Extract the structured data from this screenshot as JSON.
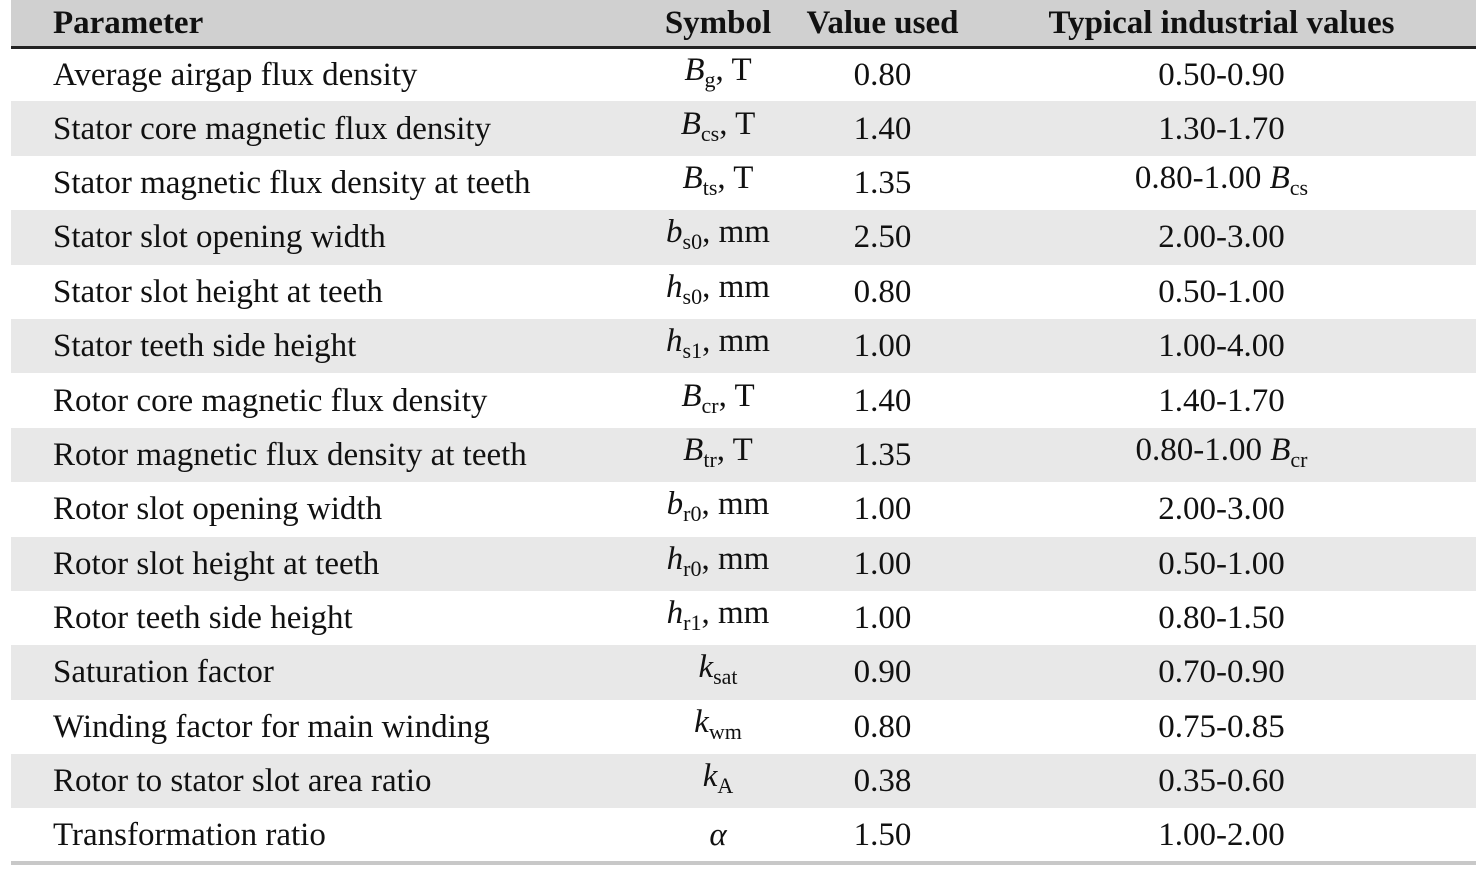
{
  "table": {
    "headers": {
      "parameter": "Parameter",
      "symbol": "Symbol",
      "value_used": "Value used",
      "typical": "Typical industrial values"
    },
    "rows": [
      {
        "parameter": "Average airgap flux density",
        "sym_main": "B",
        "sym_sub": "g",
        "sym_unit": ", T",
        "value": "0.80",
        "typical": "0.50-0.90",
        "typical_sym_main": "",
        "typical_sym_sub": ""
      },
      {
        "parameter": "Stator core magnetic flux density",
        "sym_main": "B",
        "sym_sub": "cs",
        "sym_unit": ", T",
        "value": "1.40",
        "typical": "1.30-1.70",
        "typical_sym_main": "",
        "typical_sym_sub": ""
      },
      {
        "parameter": "Stator magnetic flux density at teeth",
        "sym_main": "B",
        "sym_sub": "ts",
        "sym_unit": ", T",
        "value": "1.35",
        "typical": "0.80-1.00 ",
        "typical_sym_main": "B",
        "typical_sym_sub": "cs"
      },
      {
        "parameter": "Stator slot opening width",
        "sym_main": "b",
        "sym_sub": "s0",
        "sym_unit": ", mm",
        "value": "2.50",
        "typical": "2.00-3.00",
        "typical_sym_main": "",
        "typical_sym_sub": ""
      },
      {
        "parameter": "Stator slot height at teeth",
        "sym_main": "h",
        "sym_sub": "s0",
        "sym_unit": ", mm",
        "value": "0.80",
        "typical": "0.50-1.00",
        "typical_sym_main": "",
        "typical_sym_sub": ""
      },
      {
        "parameter": "Stator teeth side height",
        "sym_main": "h",
        "sym_sub": "s1",
        "sym_unit": ", mm",
        "value": "1.00",
        "typical": "1.00-4.00",
        "typical_sym_main": "",
        "typical_sym_sub": ""
      },
      {
        "parameter": "Rotor core magnetic flux density",
        "sym_main": "B",
        "sym_sub": "cr",
        "sym_unit": ", T",
        "value": "1.40",
        "typical": "1.40-1.70",
        "typical_sym_main": "",
        "typical_sym_sub": ""
      },
      {
        "parameter": "Rotor magnetic flux density at teeth",
        "sym_main": "B",
        "sym_sub": "tr",
        "sym_unit": ", T",
        "value": "1.35",
        "typical": "0.80-1.00 ",
        "typical_sym_main": "B",
        "typical_sym_sub": "cr"
      },
      {
        "parameter": "Rotor slot opening width",
        "sym_main": "b",
        "sym_sub": "r0",
        "sym_unit": ", mm",
        "value": "1.00",
        "typical": "2.00-3.00",
        "typical_sym_main": "",
        "typical_sym_sub": ""
      },
      {
        "parameter": "Rotor slot height at teeth",
        "sym_main": "h",
        "sym_sub": "r0",
        "sym_unit": ", mm",
        "value": "1.00",
        "typical": "0.50-1.00",
        "typical_sym_main": "",
        "typical_sym_sub": ""
      },
      {
        "parameter": "Rotor teeth side height",
        "sym_main": "h",
        "sym_sub": "r1",
        "sym_unit": ", mm",
        "value": "1.00",
        "typical": "0.80-1.50",
        "typical_sym_main": "",
        "typical_sym_sub": ""
      },
      {
        "parameter": "Saturation factor",
        "sym_main": "k",
        "sym_sub": "sat",
        "sym_unit": "",
        "value": "0.90",
        "typical": "0.70-0.90",
        "typical_sym_main": "",
        "typical_sym_sub": ""
      },
      {
        "parameter": "Winding factor for main winding",
        "sym_main": "k",
        "sym_sub": "wm",
        "sym_unit": "",
        "value": "0.80",
        "typical": "0.75-0.85",
        "typical_sym_main": "",
        "typical_sym_sub": ""
      },
      {
        "parameter": "Rotor to stator slot area ratio",
        "sym_main": "k",
        "sym_sub": "A",
        "sym_unit": "",
        "value": "0.38",
        "typical": "0.35-0.60",
        "typical_sym_main": "",
        "typical_sym_sub": ""
      },
      {
        "parameter": "Transformation ratio",
        "sym_main": "α",
        "sym_sub": "",
        "sym_unit": "",
        "value": "1.50",
        "typical": "1.00-2.00",
        "typical_sym_main": "",
        "typical_sym_sub": ""
      }
    ]
  },
  "colors": {
    "header_bg": "#d0d0d0",
    "row_shade": "#e8e8e8",
    "row_plain": "#ffffff"
  }
}
